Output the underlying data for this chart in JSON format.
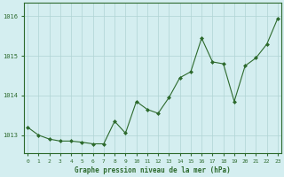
{
  "x": [
    0,
    1,
    2,
    3,
    4,
    5,
    6,
    7,
    8,
    9,
    10,
    11,
    12,
    13,
    14,
    15,
    16,
    17,
    18,
    19,
    20,
    21,
    22,
    23
  ],
  "lines": [
    {
      "y": [
        1013.2,
        1013.0,
        1012.9,
        1012.85,
        1012.85,
        1012.82,
        1012.78,
        1012.78,
        1013.35,
        1013.05,
        1013.85,
        1013.65,
        1013.55,
        1013.95,
        1014.45,
        1014.6,
        1015.45,
        1014.85,
        1014.8,
        1013.85,
        1014.75,
        1014.95,
        1015.3,
        1015.95
      ],
      "has_markers": true,
      "continuous": true
    },
    {
      "y": [
        1013.2,
        null,
        null,
        null,
        null,
        null,
        null,
        null,
        null,
        null,
        1013.7,
        null,
        null,
        null,
        null,
        null,
        null,
        null,
        null,
        null,
        null,
        null,
        null,
        1015.95
      ],
      "has_markers": false,
      "continuous": false
    },
    {
      "y": [
        1013.2,
        null,
        null,
        null,
        null,
        null,
        null,
        null,
        null,
        null,
        1013.75,
        null,
        null,
        null,
        null,
        null,
        null,
        null,
        null,
        null,
        null,
        null,
        null,
        1016.0
      ],
      "has_markers": false,
      "continuous": false
    },
    {
      "y": [
        1013.2,
        null,
        null,
        null,
        null,
        null,
        null,
        null,
        null,
        null,
        1013.8,
        null,
        null,
        null,
        null,
        null,
        null,
        null,
        null,
        null,
        null,
        null,
        null,
        1016.05
      ],
      "has_markers": false,
      "continuous": false
    },
    {
      "y": [
        1013.2,
        null,
        null,
        null,
        null,
        null,
        null,
        null,
        null,
        null,
        1013.85,
        null,
        null,
        null,
        null,
        null,
        null,
        null,
        null,
        null,
        null,
        null,
        null,
        1016.1
      ],
      "has_markers": false,
      "continuous": false
    }
  ],
  "bg_color": "#d4eef0",
  "line_color": "#2d6a2d",
  "grid_color": "#b0d4d4",
  "xlabel": "Graphe pression niveau de la mer (hPa)",
  "ylabel_ticks": [
    1013,
    1014,
    1015,
    1016
  ],
  "ylim": [
    1012.55,
    1016.35
  ],
  "xlim": [
    -0.3,
    23.3
  ],
  "xticks": [
    0,
    1,
    2,
    3,
    4,
    5,
    6,
    7,
    8,
    9,
    10,
    11,
    12,
    13,
    14,
    15,
    16,
    17,
    18,
    19,
    20,
    21,
    22,
    23
  ]
}
